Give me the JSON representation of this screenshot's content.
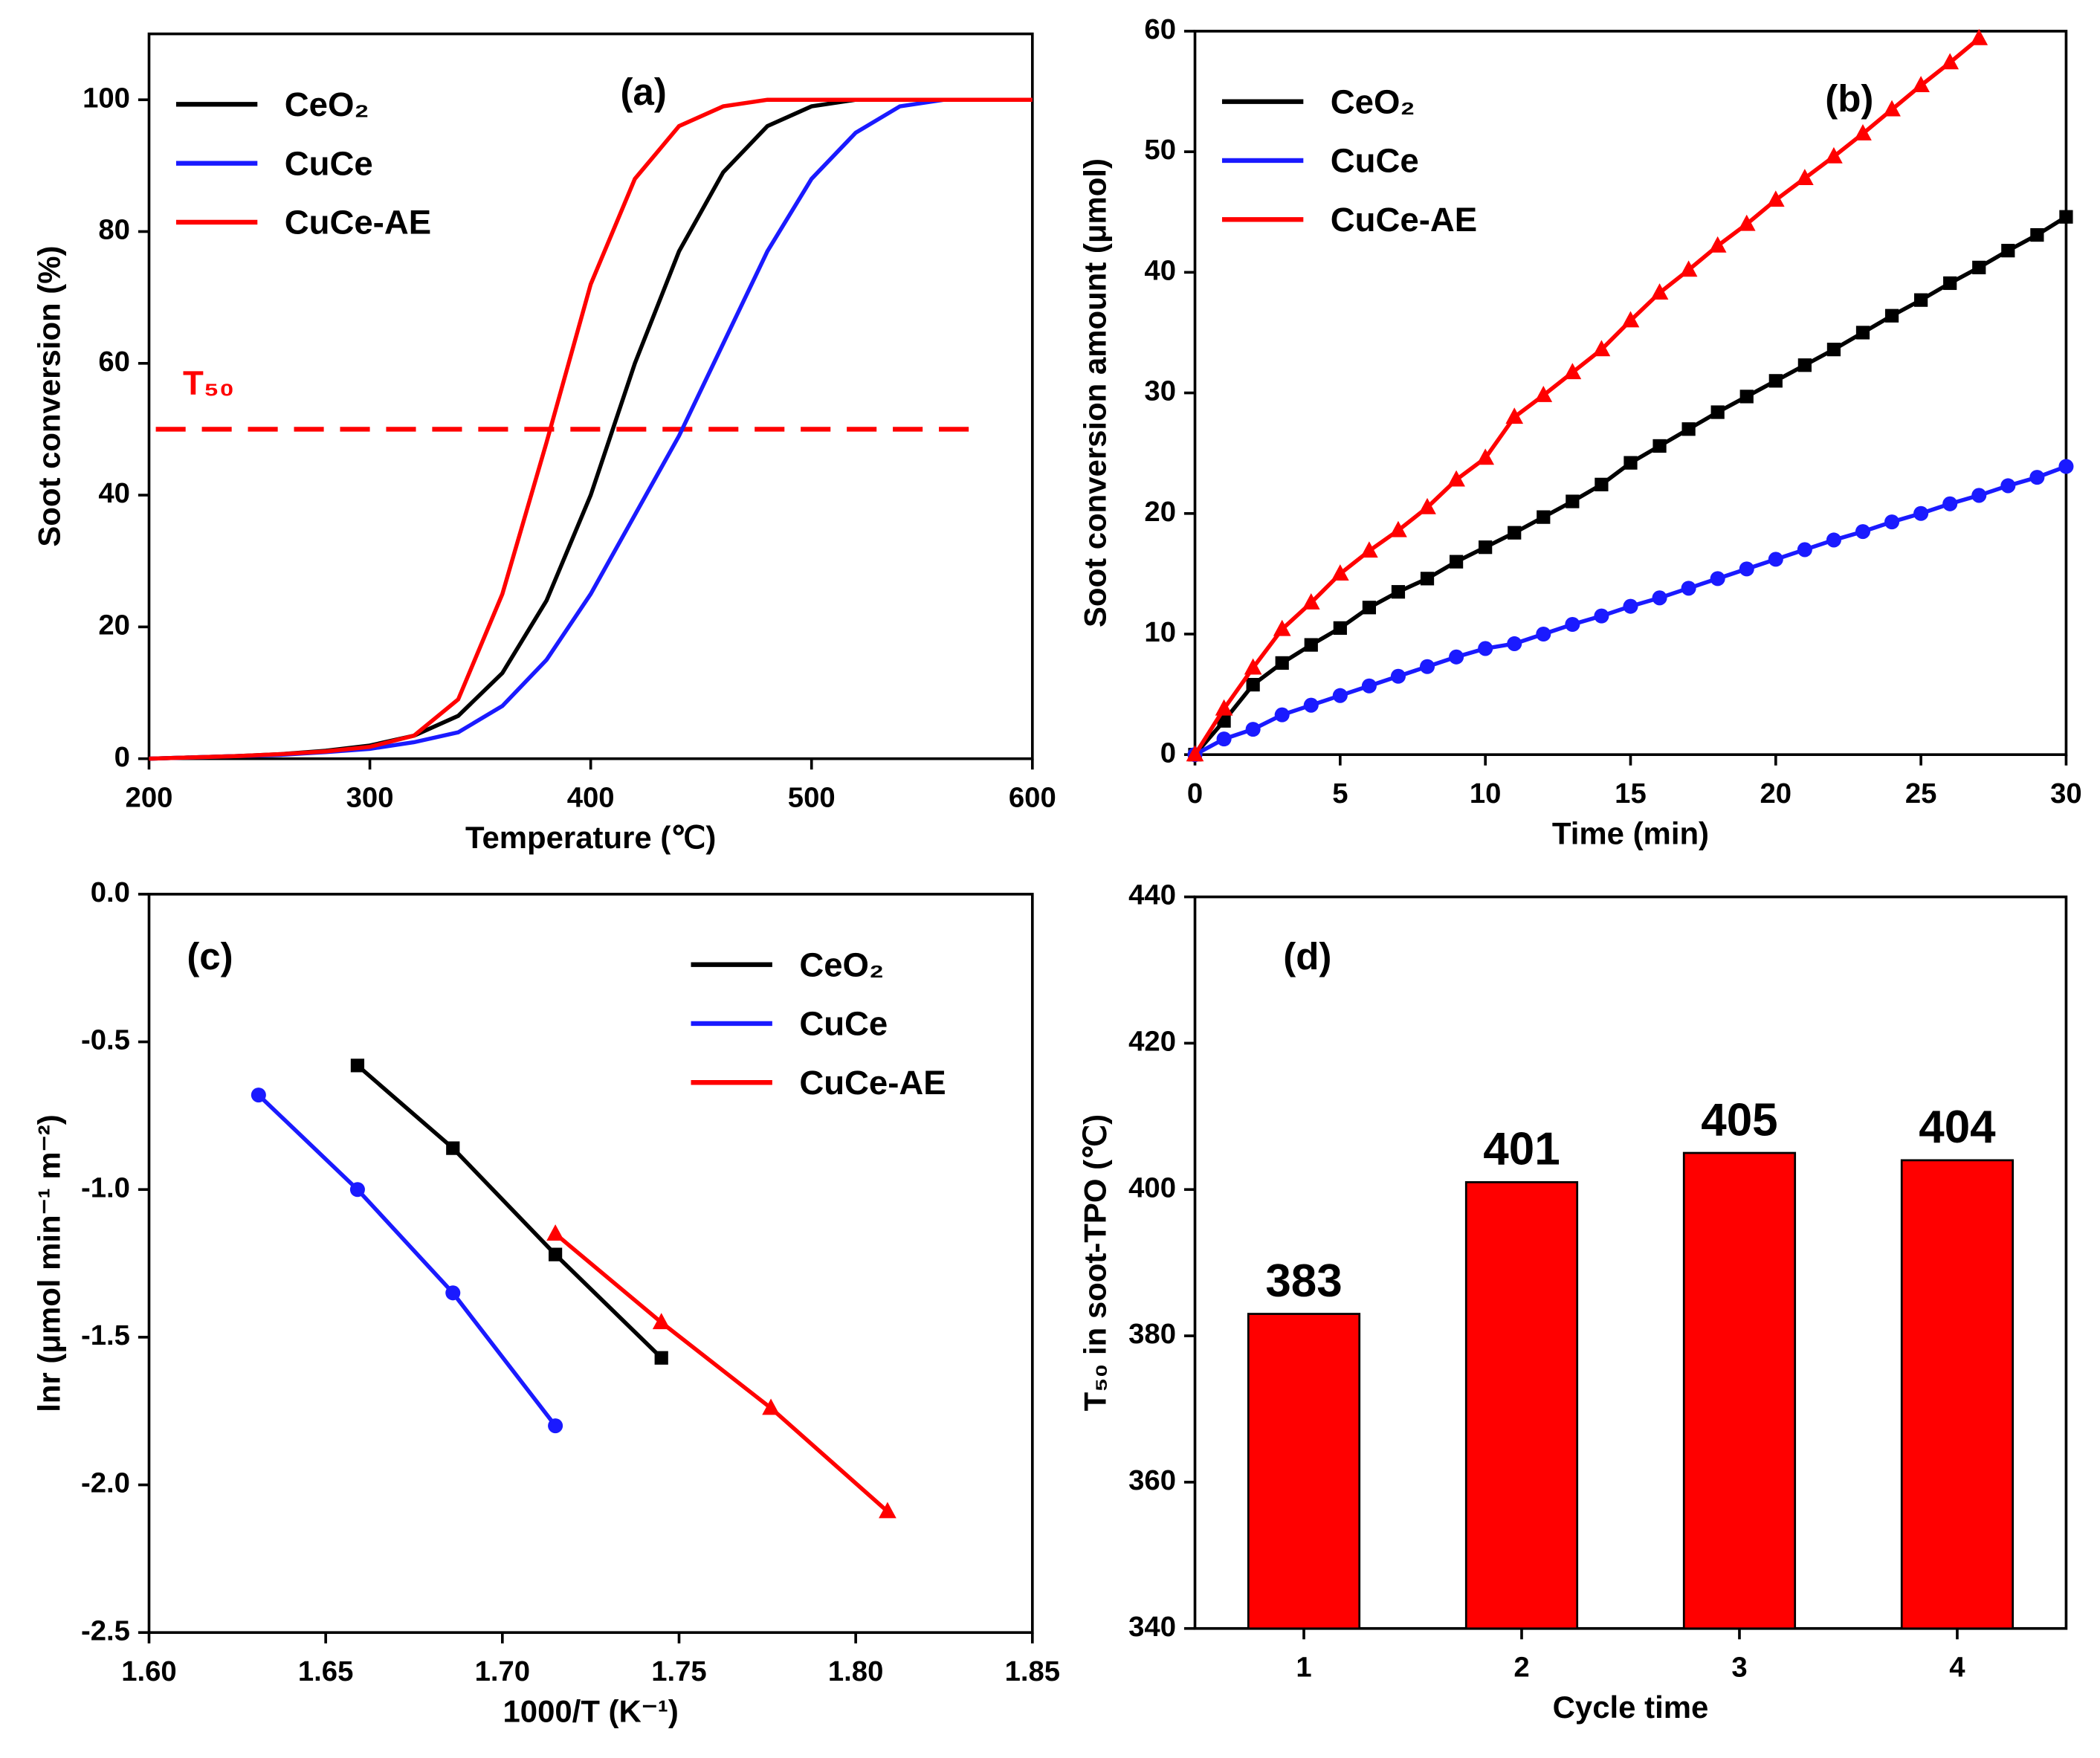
{
  "chart_data": [
    {
      "type": "line",
      "panel_label": "(a)",
      "x_label": "Temperature (℃)",
      "y_label": "Soot conversion (%)",
      "x": [
        200,
        220,
        240,
        260,
        280,
        300,
        320,
        340,
        360,
        380,
        400,
        420,
        440,
        460,
        480,
        500,
        520,
        540,
        560,
        580,
        600
      ],
      "series": [
        {
          "name": "CeO₂",
          "color": "#000000",
          "values": [
            0,
            0.2,
            0.4,
            0.7,
            1.2,
            2,
            3.5,
            6.5,
            13,
            24,
            40,
            60,
            77,
            89,
            96,
            99,
            100,
            100,
            100,
            100,
            100
          ]
        },
        {
          "name": "CuCe",
          "color": "#1a1aff",
          "values": [
            0,
            0.2,
            0.4,
            0.6,
            1,
            1.5,
            2.5,
            4,
            8,
            15,
            25,
            37,
            49,
            63,
            77,
            88,
            95,
            99,
            100,
            100,
            100
          ]
        },
        {
          "name": "CuCe-AE",
          "color": "#ff0000",
          "values": [
            0,
            0.2,
            0.4,
            0.7,
            1.1,
            1.8,
            3.5,
            9,
            25,
            48,
            72,
            88,
            96,
            99,
            100,
            100,
            100,
            100,
            100,
            100,
            100
          ]
        }
      ],
      "hline": {
        "value": 50,
        "label": "T₅₀",
        "color": "#ff0000"
      },
      "xlim": [
        200,
        600
      ],
      "xticks": [
        200,
        300,
        400,
        500,
        600
      ],
      "ylim": [
        0,
        110
      ],
      "yticks": [
        0,
        20,
        40,
        60,
        80,
        100
      ],
      "legend": "upper left"
    },
    {
      "type": "line",
      "panel_label": "(b)",
      "x_label": "Time (min)",
      "y_label": "Soot conversion amount (μmol)",
      "x": [
        0,
        1,
        2,
        3,
        4,
        5,
        6,
        7,
        8,
        9,
        10,
        11,
        12,
        13,
        14,
        15,
        16,
        17,
        18,
        19,
        20,
        21,
        22,
        23,
        24,
        25,
        26,
        27,
        28,
        29,
        30
      ],
      "series": [
        {
          "name": "CeO₂",
          "color": "#000000",
          "marker": "square",
          "values": [
            0,
            2.8,
            5.8,
            7.6,
            9.1,
            10.5,
            12.2,
            13.5,
            14.6,
            16,
            17.2,
            18.4,
            19.7,
            21,
            22.4,
            24.2,
            25.6,
            27,
            28.4,
            29.7,
            31,
            32.3,
            33.6,
            35,
            36.4,
            37.7,
            39.1,
            40.4,
            41.8,
            43.1,
            44.6
          ]
        },
        {
          "name": "CuCe",
          "color": "#1a1aff",
          "marker": "circle",
          "values": [
            0,
            1.3,
            2.1,
            3.3,
            4.1,
            4.9,
            5.7,
            6.5,
            7.3,
            8.1,
            8.8,
            9.2,
            10,
            10.8,
            11.5,
            12.3,
            13,
            13.8,
            14.6,
            15.4,
            16.2,
            17,
            17.8,
            18.5,
            19.3,
            20,
            20.8,
            21.5,
            22.3,
            23,
            23.9
          ]
        },
        {
          "name": "CuCe-AE",
          "color": "#ff0000",
          "marker": "triangle",
          "values": [
            0,
            3.8,
            7.2,
            10.4,
            12.6,
            15,
            16.9,
            18.6,
            20.5,
            22.8,
            24.6,
            28,
            29.8,
            31.7,
            33.6,
            36,
            38.3,
            40.2,
            42.2,
            44,
            46,
            47.8,
            49.6,
            51.5,
            53.5,
            55.5,
            57.4,
            59.4,
            null,
            null,
            null
          ]
        }
      ],
      "xlim": [
        0,
        30
      ],
      "xticks": [
        0,
        5,
        10,
        15,
        20,
        25,
        30
      ],
      "ylim": [
        0,
        60
      ],
      "yticks": [
        0,
        10,
        20,
        30,
        40,
        50,
        60
      ],
      "legend": "upper left"
    },
    {
      "type": "scatter",
      "panel_label": "(c)",
      "x_label": "1000/T (K⁻¹)",
      "y_label": "lnr (μmol min⁻¹ m⁻²)",
      "series": [
        {
          "name": "CeO₂",
          "color": "#000000",
          "marker": "square",
          "x": [
            1.659,
            1.686,
            1.715,
            1.745
          ],
          "values": [
            -0.58,
            -0.86,
            -1.22,
            -1.57
          ]
        },
        {
          "name": "CuCe",
          "color": "#1a1aff",
          "marker": "circle",
          "x": [
            1.631,
            1.659,
            1.686,
            1.715
          ],
          "values": [
            -0.68,
            -1.0,
            -1.35,
            -1.8
          ]
        },
        {
          "name": "CuCe-AE",
          "color": "#ff0000",
          "marker": "triangle",
          "x": [
            1.715,
            1.745,
            1.776,
            1.809
          ],
          "values": [
            -1.15,
            -1.45,
            -1.74,
            -2.09
          ]
        }
      ],
      "xlim": [
        1.6,
        1.85
      ],
      "xticks": [
        {
          "value": 1.6,
          "label": "1.60"
        },
        {
          "value": 1.65,
          "label": "1.65"
        },
        {
          "value": 1.7,
          "label": "1.70"
        },
        {
          "value": 1.75,
          "label": "1.75"
        },
        {
          "value": 1.8,
          "label": "1.80"
        },
        {
          "value": 1.85,
          "label": "1.85"
        }
      ],
      "ylim": [
        -2.5,
        0
      ],
      "yticks": [
        {
          "value": 0,
          "label": "0.0"
        },
        {
          "value": -0.5,
          "label": "-0.5"
        },
        {
          "value": -1,
          "label": "-1.0"
        },
        {
          "value": -1.5,
          "label": "-1.5"
        },
        {
          "value": -2,
          "label": "-2.0"
        },
        {
          "value": -2.5,
          "label": "-2.5"
        }
      ],
      "legend": "upper right"
    },
    {
      "type": "bar",
      "panel_label": "(d)",
      "x_label": "Cycle time",
      "y_label": "T₅₀ in soot-TPO (℃)",
      "categories": [
        "1",
        "2",
        "3",
        "4"
      ],
      "values": [
        383,
        401,
        405,
        404
      ],
      "color": "#ff0000",
      "ylim": [
        340,
        440
      ],
      "yticks": [
        340,
        360,
        380,
        400,
        420,
        440
      ]
    }
  ]
}
